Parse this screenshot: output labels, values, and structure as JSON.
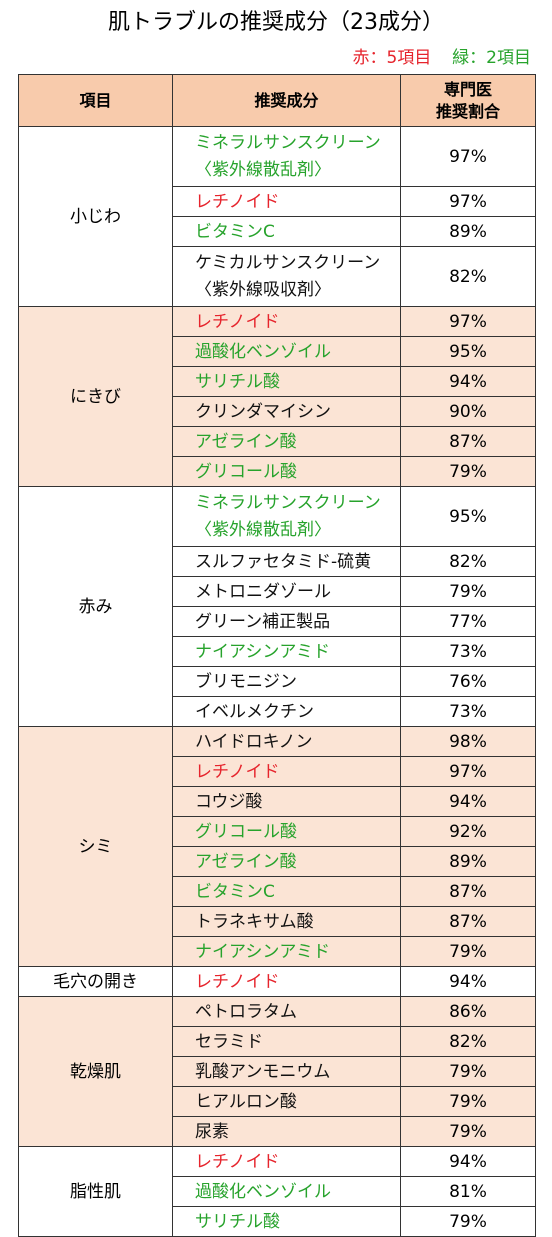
{
  "title": "肌トラブルの推奨成分（23成分）",
  "legend": {
    "red": "赤：5項目",
    "green": "緑：2項目"
  },
  "headers": {
    "item": "項目",
    "ingredient": "推奨成分",
    "ratio_line1": "専門医",
    "ratio_line2": "推奨割合"
  },
  "colors": {
    "red": "#e6242c",
    "green": "#27a32c",
    "header_bg": "#f8cbac",
    "alt_bg": "#fbe4d5"
  },
  "groups": [
    {
      "name": "小じわ",
      "shaded": false,
      "rows": [
        {
          "line1": "ミネラルサンスクリーン",
          "line2": "〈紫外線散乱剤〉",
          "color": "green",
          "pct": "97%"
        },
        {
          "line1": "レチノイド",
          "color": "red",
          "pct": "97%"
        },
        {
          "line1": "ビタミンC",
          "color": "green",
          "pct": "89%"
        },
        {
          "line1": "ケミカルサンスクリーン",
          "line2": "〈紫外線吸収剤〉",
          "color": "black",
          "pct": "82%"
        }
      ]
    },
    {
      "name": "にきび",
      "shaded": true,
      "rows": [
        {
          "line1": "レチノイド",
          "color": "red",
          "pct": "97%"
        },
        {
          "line1": "過酸化ベンゾイル",
          "color": "green",
          "pct": "95%"
        },
        {
          "line1": "サリチル酸",
          "color": "green",
          "pct": "94%"
        },
        {
          "line1": "クリンダマイシン",
          "color": "black",
          "pct": "90%"
        },
        {
          "line1": "アゼライン酸",
          "color": "green",
          "pct": "87%"
        },
        {
          "line1": "グリコール酸",
          "color": "green",
          "pct": "79%"
        }
      ]
    },
    {
      "name": "赤み",
      "shaded": false,
      "rows": [
        {
          "line1": "ミネラルサンスクリーン",
          "line2": "〈紫外線散乱剤〉",
          "color": "green",
          "pct": "95%"
        },
        {
          "line1": "スルファセタミド-硫黄",
          "color": "black",
          "pct": "82%"
        },
        {
          "line1": "メトロニダゾール",
          "color": "black",
          "pct": "79%"
        },
        {
          "line1": "グリーン補正製品",
          "color": "black",
          "pct": "77%"
        },
        {
          "line1": "ナイアシンアミド",
          "color": "green",
          "pct": "73%"
        },
        {
          "line1": "ブリモニジン",
          "color": "black",
          "pct": "76%"
        },
        {
          "line1": "イベルメクチン",
          "color": "black",
          "pct": "73%"
        }
      ]
    },
    {
      "name": "シミ",
      "shaded": true,
      "rows": [
        {
          "line1": "ハイドロキノン",
          "color": "black",
          "pct": "98%"
        },
        {
          "line1": "レチノイド",
          "color": "red",
          "pct": "97%"
        },
        {
          "line1": "コウジ酸",
          "color": "black",
          "pct": "94%"
        },
        {
          "line1": "グリコール酸",
          "color": "green",
          "pct": "92%"
        },
        {
          "line1": "アゼライン酸",
          "color": "green",
          "pct": "89%"
        },
        {
          "line1": "ビタミンC",
          "color": "green",
          "pct": "87%"
        },
        {
          "line1": "トラネキサム酸",
          "color": "black",
          "pct": "87%"
        },
        {
          "line1": "ナイアシンアミド",
          "color": "green",
          "pct": "79%"
        }
      ]
    },
    {
      "name": "毛穴の開き",
      "shaded": false,
      "rows": [
        {
          "line1": "レチノイド",
          "color": "red",
          "pct": "94%"
        }
      ]
    },
    {
      "name": "乾燥肌",
      "shaded": true,
      "rows": [
        {
          "line1": "ペトロラタム",
          "color": "black",
          "pct": "86%"
        },
        {
          "line1": "セラミド",
          "color": "black",
          "pct": "82%"
        },
        {
          "line1": "乳酸アンモニウム",
          "color": "black",
          "pct": "79%"
        },
        {
          "line1": "ヒアルロン酸",
          "color": "black",
          "pct": "79%"
        },
        {
          "line1": "尿素",
          "color": "black",
          "pct": "79%"
        }
      ]
    },
    {
      "name": "脂性肌",
      "shaded": false,
      "rows": [
        {
          "line1": "レチノイド",
          "color": "red",
          "pct": "94%"
        },
        {
          "line1": "過酸化ベンゾイル",
          "color": "green",
          "pct": "81%"
        },
        {
          "line1": "サリチル酸",
          "color": "green",
          "pct": "79%"
        }
      ]
    }
  ]
}
